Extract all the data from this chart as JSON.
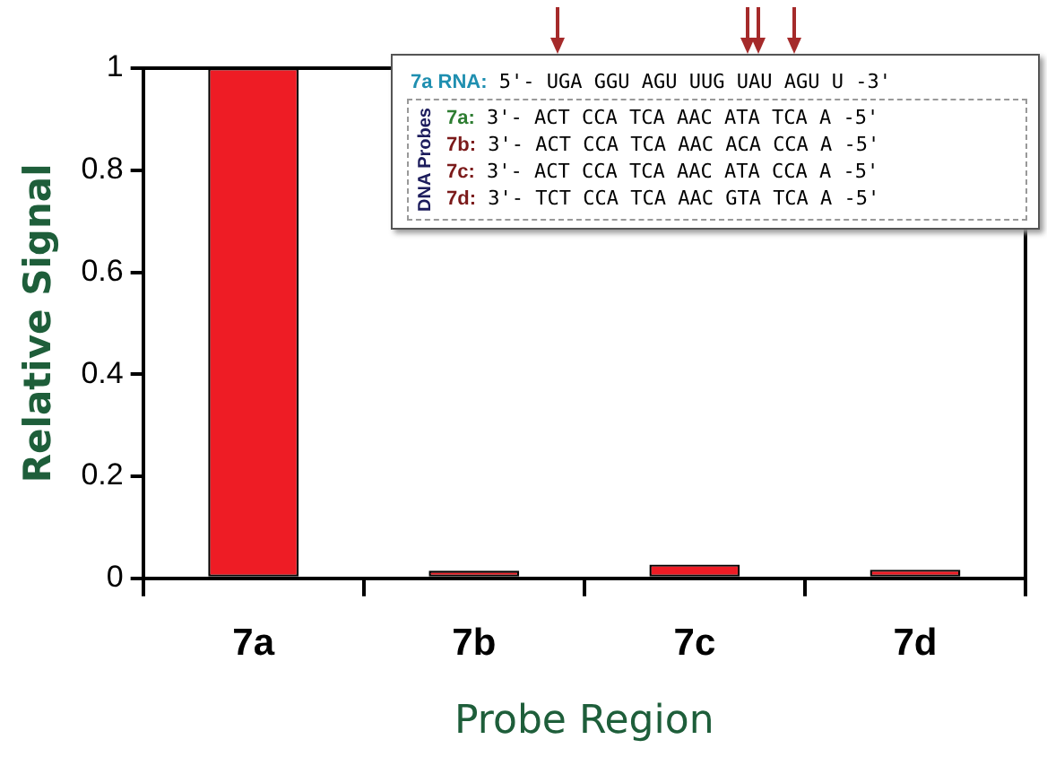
{
  "chart_data": {
    "type": "bar",
    "xlabel": "Probe Region",
    "ylabel": "Relative Signal",
    "categories": [
      "7a",
      "7b",
      "7c",
      "7d"
    ],
    "values": [
      1,
      0.015,
      0.027,
      0.017
    ],
    "color": "#ee1c25",
    "ylim": [
      0,
      1
    ],
    "yticks": [
      0,
      0.2,
      0.4,
      0.6,
      0.8,
      1
    ],
    "grid": false,
    "legend": false,
    "annotations": [
      "7a RNA: 5'- UGA GGU AGU UUG UAU AGU U -3'",
      "DNA Probes",
      "7a: 3'- ACT CCA TCA AAC ATA TCA A -5'",
      "7b: 3'- ACT CCA TCA AAC ACA CCA A -5'",
      "7c: 3'- ACT CCA TCA AAC ATA CCA A -5'",
      "7d: 3'- TCT CCA TCA AAC GTA TCA A -5'"
    ]
  }
}
